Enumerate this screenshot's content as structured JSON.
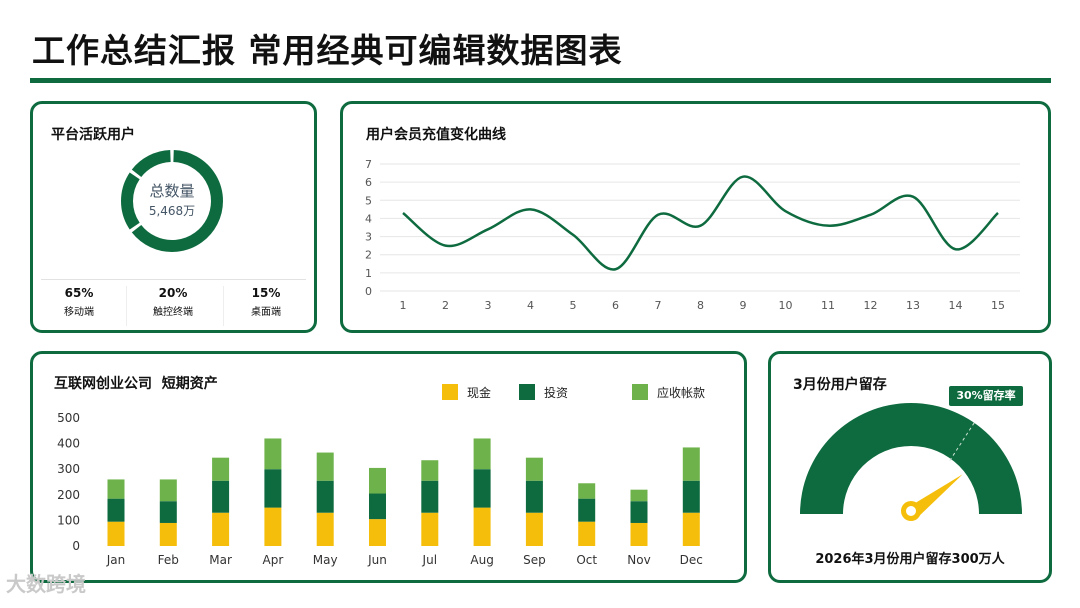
{
  "page": {
    "title": "工作总结汇报 常用经典可编辑数据图表",
    "watermark": "大数跨境"
  },
  "colors": {
    "brand": "#0e6b3f",
    "cash": "#f5be0b",
    "investment": "#0e6b3f",
    "receivable": "#6db24a"
  },
  "donut_card": {
    "title": "平台活跃用户",
    "center_label": "总数量",
    "center_value": "5,468万",
    "stats": [
      {
        "value": "65%",
        "label": "移动端"
      },
      {
        "value": "20%",
        "label": "触控终端"
      },
      {
        "value": "15%",
        "label": "桌面端"
      }
    ]
  },
  "line_card": {
    "title": "用户会员充值变化曲线"
  },
  "bar_card": {
    "title": "互联网创业公司  短期资产"
  },
  "gauge_card": {
    "title": "3月份用户留存",
    "badge": "30%留存率",
    "caption": "2026年3月份用户留存300万人"
  },
  "chart_data": [
    {
      "type": "pie",
      "title": "平台活跃用户",
      "categories": [
        "移动端",
        "触控终端",
        "桌面端"
      ],
      "values": [
        65,
        20,
        15
      ]
    },
    {
      "type": "line",
      "title": "用户会员充值变化曲线",
      "x": [
        1,
        2,
        3,
        4,
        5,
        6,
        7,
        8,
        9,
        10,
        11,
        12,
        13,
        14,
        15
      ],
      "y": [
        4.3,
        2.5,
        3.4,
        4.5,
        3.1,
        1.2,
        4.2,
        3.6,
        6.3,
        4.4,
        3.6,
        4.2,
        5.2,
        2.3,
        4.3
      ],
      "ylim": [
        0,
        7
      ],
      "yticks": [
        0,
        1,
        2,
        3,
        4,
        5,
        6,
        7
      ],
      "grid": true
    },
    {
      "type": "bar",
      "stacked": true,
      "title": "互联网创业公司  短期资产",
      "categories": [
        "Jan",
        "Feb",
        "Mar",
        "Apr",
        "May",
        "Jun",
        "Jul",
        "Aug",
        "Sep",
        "Oct",
        "Nov",
        "Dec"
      ],
      "series": [
        {
          "name": "现金",
          "color": "#f5be0b",
          "values": [
            95,
            90,
            130,
            150,
            130,
            105,
            130,
            150,
            130,
            95,
            90,
            130
          ]
        },
        {
          "name": "投资",
          "color": "#0e6b3f",
          "values": [
            90,
            85,
            125,
            150,
            125,
            100,
            125,
            150,
            125,
            90,
            85,
            125
          ]
        },
        {
          "name": "应收帐款",
          "color": "#6db24a",
          "values": [
            75,
            85,
            90,
            120,
            110,
            100,
            80,
            120,
            90,
            60,
            45,
            130
          ]
        }
      ],
      "ylim": [
        0,
        500
      ],
      "yticks": [
        0,
        100,
        200,
        300,
        400,
        500
      ],
      "legend": "top-right"
    },
    {
      "type": "gauge",
      "title": "3月份用户留存",
      "value": 30,
      "max": 100
    }
  ]
}
